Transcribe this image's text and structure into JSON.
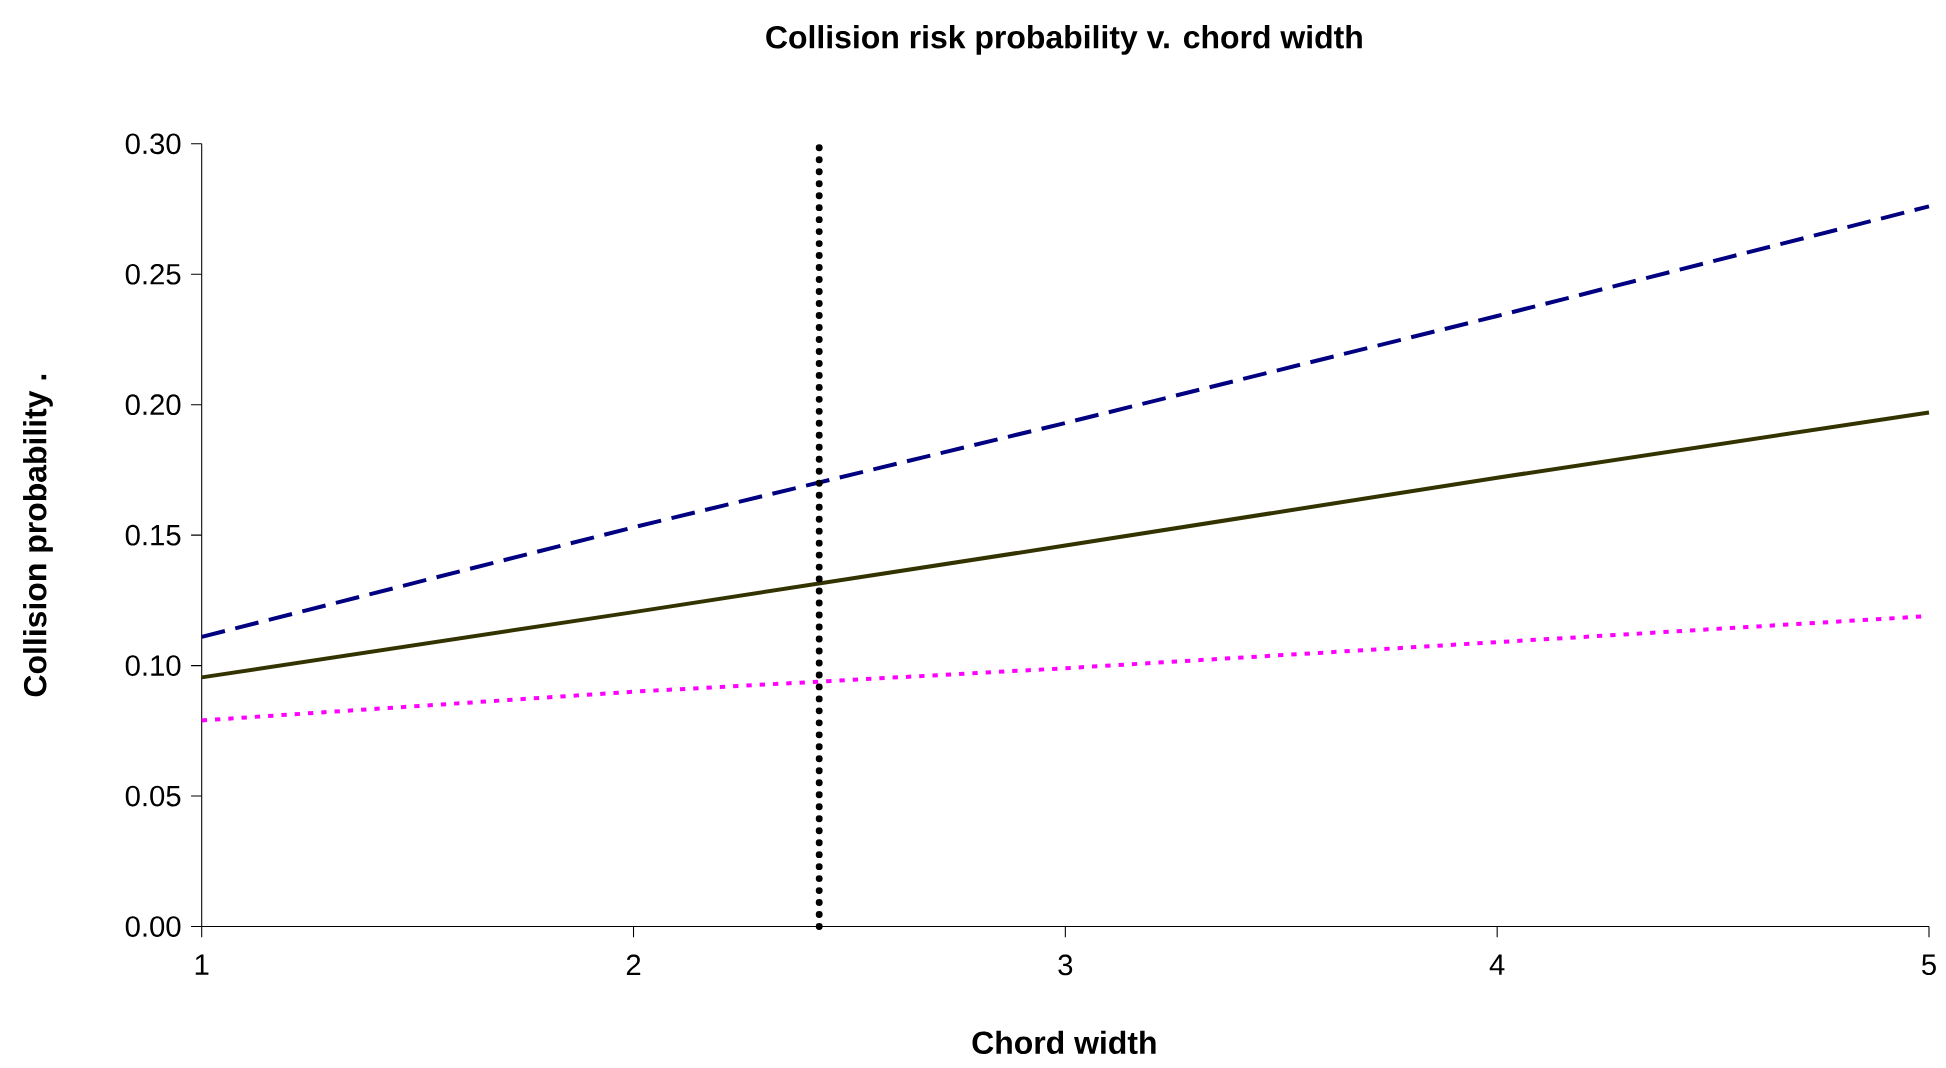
{
  "chart_data": {
    "type": "line",
    "title": "Collision risk probability v. chord width",
    "xlabel": "Chord width",
    "ylabel": "Collision probability .",
    "x": [
      1,
      2,
      3,
      4,
      5
    ],
    "series": [
      {
        "color": "#000080",
        "line_style": "dashed",
        "values": [
          0.111,
          0.153,
          0.193,
          0.234,
          0.276
        ]
      },
      {
        "color": "#333300",
        "line_style": "solid",
        "values": [
          0.0955,
          0.1205,
          0.146,
          0.172,
          0.197
        ]
      },
      {
        "color": "#ff00ff",
        "line_style": "dotted",
        "values": [
          0.079,
          0.09,
          0.099,
          0.109,
          0.119
        ]
      }
    ],
    "ref_lines": [
      {
        "axis": "x",
        "value": 2.43,
        "color": "#000000",
        "line_style": "dotted"
      }
    ],
    "xlim": [
      1,
      5
    ],
    "xticks": [
      1,
      2,
      3,
      4,
      5
    ],
    "ylim": [
      0,
      0.3
    ],
    "yticks": [
      {
        "value": 0,
        "label": "0.00"
      },
      {
        "value": 0.05,
        "label": "0.05"
      },
      {
        "value": 0.1,
        "label": "0.10"
      },
      {
        "value": 0.15,
        "label": "0.15"
      },
      {
        "value": 0.2,
        "label": "0.20"
      },
      {
        "value": 0.25,
        "label": "0.25"
      },
      {
        "value": 0.3,
        "label": "0.30"
      }
    ],
    "marker": "none"
  }
}
